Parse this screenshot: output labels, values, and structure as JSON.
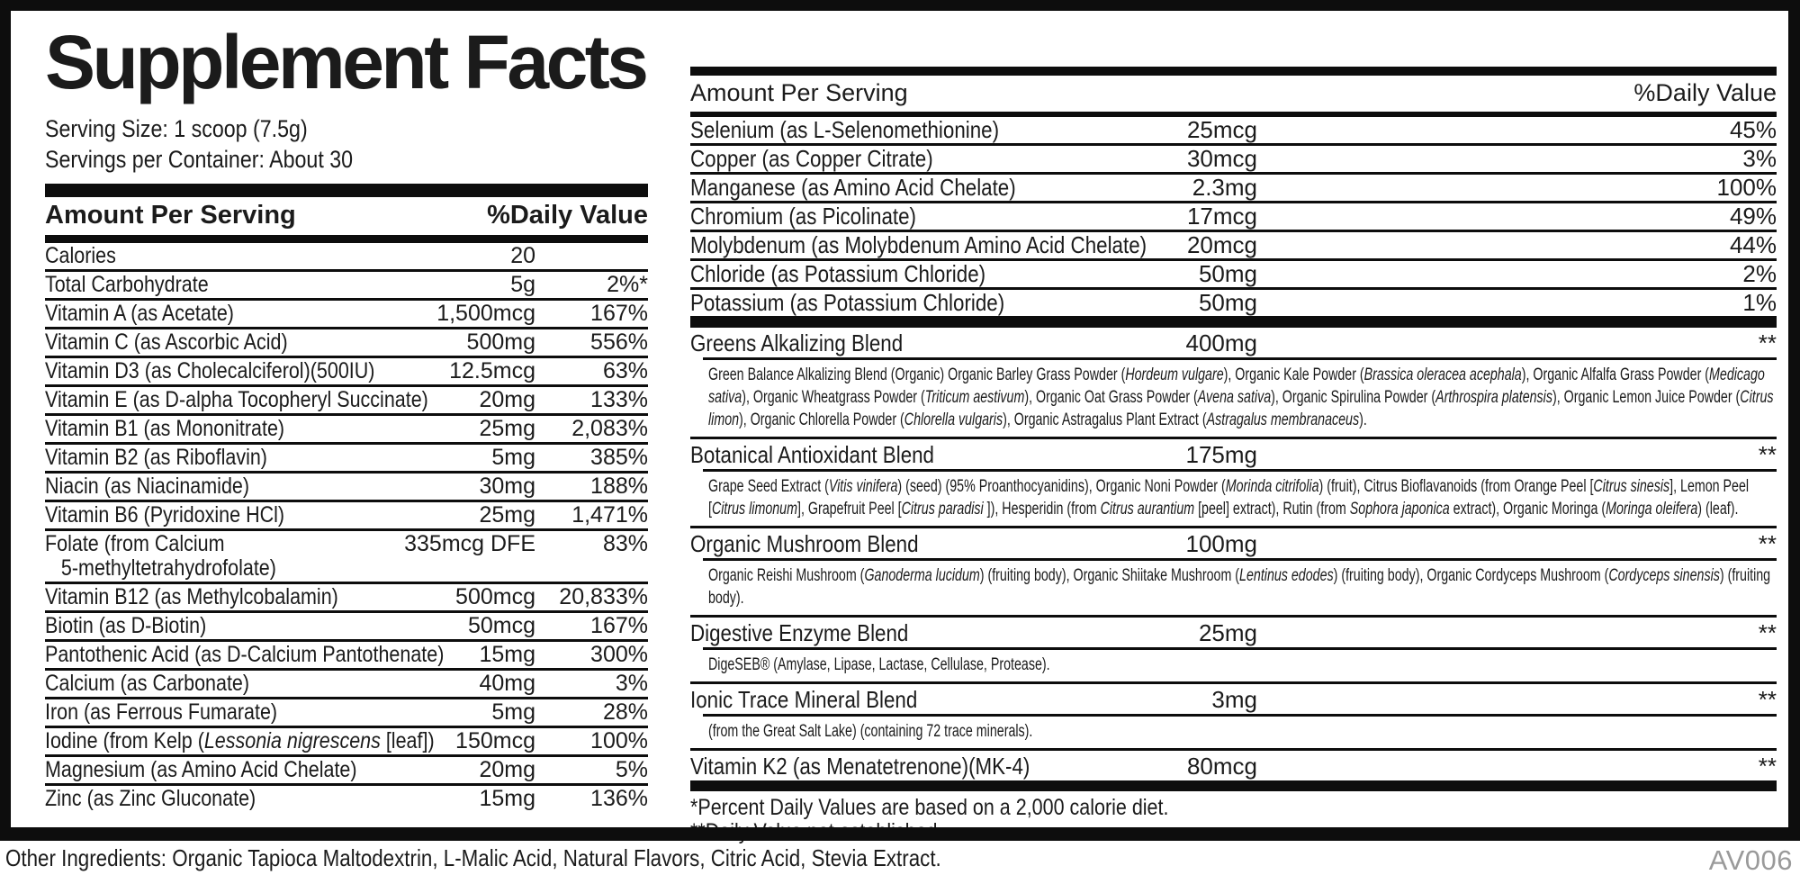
{
  "title": "Supplement Facts",
  "serving": {
    "size": "Serving Size: 1 scoop (7.5g)",
    "per_container": "Servings per Container: About 30"
  },
  "headers": {
    "amount_label": "Amount Per Serving",
    "dv_label": "%Daily Value"
  },
  "left_rows": [
    {
      "name": "Calories",
      "amount": "20",
      "dv": ""
    },
    {
      "name": "Total Carbohydrate",
      "amount": "5g",
      "dv": "2%*"
    },
    {
      "name": "Vitamin A (as Acetate)",
      "amount": "1,500mcg",
      "dv": "167%"
    },
    {
      "name": "Vitamin C (as Ascorbic Acid)",
      "amount": "500mg",
      "dv": "556%"
    },
    {
      "name": "Vitamin D3 (as Cholecalciferol)(500IU)",
      "amount": "12.5mcg",
      "dv": "63%"
    },
    {
      "name": "Vitamin E (as D-alpha Tocopheryl Succinate)",
      "amount": "20mg",
      "dv": "133%"
    },
    {
      "name": "Vitamin B1 (as Mononitrate)",
      "amount": "25mg",
      "dv": "2,083%"
    },
    {
      "name": "Vitamin B2 (as Riboflavin)",
      "amount": "5mg",
      "dv": "385%"
    },
    {
      "name": "Niacin (as Niacinamide)",
      "amount": "30mg",
      "dv": "188%"
    },
    {
      "name": "Vitamin B6 (Pyridoxine HCl)",
      "amount": "25mg",
      "dv": "1,471%"
    },
    {
      "name": "Folate (from Calcium\n   5-methyltetrahydrofolate)",
      "amount": "335mcg DFE",
      "dv": "83%"
    },
    {
      "name": "Vitamin B12 (as Methylcobalamin)",
      "amount": "500mcg",
      "dv": "20,833%"
    },
    {
      "name": "Biotin (as D-Biotin)",
      "amount": "50mcg",
      "dv": "167%"
    },
    {
      "name": "Pantothenic Acid (as D-Calcium Pantothenate)",
      "amount": "15mg",
      "dv": "300%"
    },
    {
      "name": "Calcium (as Carbonate)",
      "amount": "40mg",
      "dv": "3%"
    },
    {
      "name": "Iron (as Ferrous Fumarate)",
      "amount": "5mg",
      "dv": "28%"
    },
    {
      "name": "Iodine (from Kelp (*Lessonia nigrescens* [leaf])",
      "amount": "150mcg",
      "dv": "100%"
    },
    {
      "name": "Magnesium (as Amino Acid Chelate)",
      "amount": "20mg",
      "dv": "5%"
    },
    {
      "name": "Zinc (as Zinc Gluconate)",
      "amount": "15mg",
      "dv": "136%"
    }
  ],
  "right_rows": [
    {
      "name": "Selenium (as L-Selenomethionine)",
      "amount": "25mcg",
      "dv": "45%"
    },
    {
      "name": "Copper (as Copper Citrate)",
      "amount": "30mcg",
      "dv": "3%"
    },
    {
      "name": "Manganese (as Amino Acid Chelate)",
      "amount": "2.3mg",
      "dv": "100%"
    },
    {
      "name": "Chromium (as Picolinate)",
      "amount": "17mcg",
      "dv": "49%"
    },
    {
      "name": "Molybdenum (as Molybdenum Amino Acid Chelate)",
      "amount": "20mcg",
      "dv": "44%"
    },
    {
      "name": "Chloride (as Potassium Chloride)",
      "amount": "50mg",
      "dv": "2%"
    },
    {
      "name": "Potassium (as Potassium Chloride)",
      "amount": "50mg",
      "dv": "1%"
    }
  ],
  "blends": [
    {
      "name": "Greens Alkalizing Blend",
      "amount": "400mg",
      "dv": "**",
      "desc": "Green Balance Alkalizing Blend (Organic) Organic Barley Grass Powder (*Hordeum vulgare*), Organic Kale Powder (*Brassica oleracea acephala*), Organic Alfalfa Grass Powder (*Medicago sativa*), Organic Wheatgrass Powder (*Triticum aestivum*), Organic Oat Grass Powder (*Avena sativa*), Organic Spirulina Powder (*Arthrospira platensis*), Organic Lemon Juice Powder (*Citrus limon*), Organic Chlorella Powder (*Chlorella vulgaris*), Organic Astragalus Plant Extract (*Astragalus membranaceus*)."
    },
    {
      "name": "Botanical Antioxidant Blend",
      "amount": "175mg",
      "dv": "**",
      "desc": "Grape Seed Extract (*Vitis vinifera*) (seed) (95% Proanthocyanidins), Organic Noni Powder (*Morinda citrifolia*) (fruit), Citrus Bioflavanoids (from Orange Peel [*Citrus sinesis*], Lemon Peel [*Citrus limonum*], Grapefruit Peel [*Citrus paradisi* ]), Hesperidin (from *Citrus aurantium* [peel] extract), Rutin (from *Sophora japonica* extract), Organic Moringa (*Moringa oleifera*) (leaf)."
    },
    {
      "name": "Organic Mushroom Blend",
      "amount": "100mg",
      "dv": "**",
      "desc": "Organic Reishi Mushroom (*Ganoderma lucidum*) (fruiting body), Organic Shiitake Mushroom (*Lentinus edodes*) (fruiting body), Organic Cordyceps Mushroom (*Cordyceps sinensis*) (fruiting body)."
    },
    {
      "name": "Digestive Enzyme Blend",
      "amount": "25mg",
      "dv": "**",
      "desc": "DigeSEB® (Amylase, Lipase, Lactase, Cellulase, Protease)."
    },
    {
      "name": "Ionic Trace Mineral Blend",
      "amount": "3mg",
      "dv": "**",
      "desc": "(from the Great Salt Lake) (containing 72 trace minerals)."
    },
    {
      "name": "Vitamin K2 (as Menatetrenone)(MK-4)",
      "amount": "80mcg",
      "dv": "**",
      "desc": ""
    }
  ],
  "footnotes": {
    "line1": "*Percent Daily Values are based on a 2,000 calorie diet.",
    "line2": "**Daily Value not established."
  },
  "footer": {
    "other_ingredients": "Other Ingredients: Organic Tapioca Maltodextrin, L-Malic Acid, Natural Flavors, Citric Acid, Stevia Extract.",
    "code": "AV006"
  }
}
